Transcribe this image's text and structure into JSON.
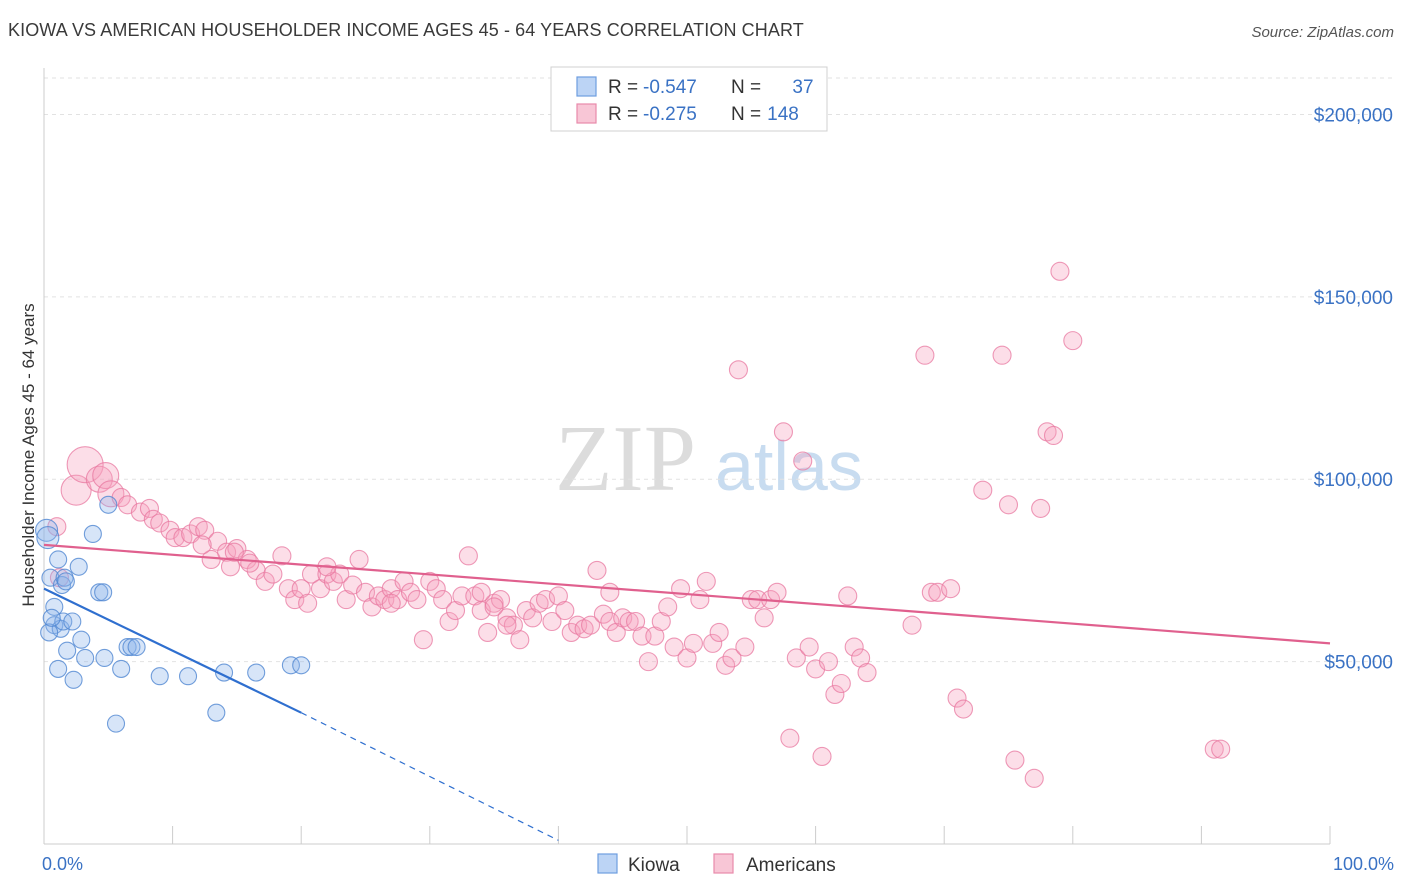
{
  "title": "KIOWA VS AMERICAN HOUSEHOLDER INCOME AGES 45 - 64 YEARS CORRELATION CHART",
  "source": "Source: ZipAtlas.com",
  "watermark": {
    "zip": "ZIP",
    "atlas": "atlas"
  },
  "legend_box": [
    {
      "r_label": "R =",
      "r_value": "-0.547",
      "n_label": "N =",
      "n_value": "37"
    },
    {
      "r_label": "R =",
      "r_value": "-0.275",
      "n_label": "N =",
      "n_value": "148"
    }
  ],
  "chart_data": {
    "type": "scatter",
    "title": "KIOWA VS AMERICAN HOUSEHOLDER INCOME AGES 45 - 64 YEARS CORRELATION CHART",
    "ylabel": "Householder Income Ages 45 - 64 years",
    "xlabel": "",
    "x_tick_labels": [
      "0.0%",
      "100.0%"
    ],
    "y_tick_labels": [
      "$50,000",
      "$100,000",
      "$150,000",
      "$200,000"
    ],
    "y_ticks": [
      50000,
      100000,
      150000,
      200000
    ],
    "xlim": [
      0,
      100
    ],
    "ylim": [
      0,
      210000
    ],
    "grid": true,
    "legend_position": "bottom-center",
    "colors": {
      "Kiowa": "#5b8fd6",
      "Americans": "#e8709a",
      "kiowa_line": "#2f6fcf",
      "americans_line": "#e0608e"
    },
    "series": [
      {
        "name": "Kiowa",
        "r": -0.547,
        "n": 37,
        "trend": {
          "x0": 0,
          "y0": 70000,
          "x1": 20,
          "y1": 36000,
          "dash_to_x": 40,
          "dash_to_y": 1000
        },
        "points": [
          [
            0.2,
            86000
          ],
          [
            0.3,
            84000
          ],
          [
            0.5,
            73000
          ],
          [
            0.8,
            65000
          ],
          [
            0.8,
            60000
          ],
          [
            1.1,
            78000
          ],
          [
            1.1,
            48000
          ],
          [
            1.3,
            59000
          ],
          [
            1.4,
            71000
          ],
          [
            1.5,
            61000
          ],
          [
            1.6,
            73000
          ],
          [
            1.7,
            72000
          ],
          [
            1.8,
            53000
          ],
          [
            2.2,
            61000
          ],
          [
            2.3,
            45000
          ],
          [
            2.7,
            76000
          ],
          [
            2.9,
            56000
          ],
          [
            3.2,
            51000
          ],
          [
            3.8,
            85000
          ],
          [
            4.3,
            69000
          ],
          [
            4.6,
            69000
          ],
          [
            4.7,
            51000
          ],
          [
            5.0,
            93000
          ],
          [
            5.6,
            33000
          ],
          [
            6.0,
            48000
          ],
          [
            6.5,
            54000
          ],
          [
            6.8,
            54000
          ],
          [
            7.2,
            54000
          ],
          [
            9.0,
            46000
          ],
          [
            11.2,
            46000
          ],
          [
            13.4,
            36000
          ],
          [
            14.0,
            47000
          ],
          [
            16.5,
            47000
          ],
          [
            19.2,
            49000
          ],
          [
            20.0,
            49000
          ],
          [
            0.4,
            58000
          ],
          [
            0.6,
            62000
          ]
        ]
      },
      {
        "name": "Americans",
        "r": -0.275,
        "n": 148,
        "trend": {
          "x0": 0,
          "y0": 82000,
          "x1": 100,
          "y1": 55000
        },
        "points": [
          [
            1.0,
            87000
          ],
          [
            1.2,
            73000
          ],
          [
            2.5,
            97000
          ],
          [
            3.2,
            104000
          ],
          [
            4.3,
            100000
          ],
          [
            4.8,
            101000
          ],
          [
            5.2,
            96000
          ],
          [
            6.0,
            95000
          ],
          [
            6.5,
            93000
          ],
          [
            7.5,
            91000
          ],
          [
            8.2,
            92000
          ],
          [
            8.5,
            89000
          ],
          [
            9.0,
            88000
          ],
          [
            9.8,
            86000
          ],
          [
            10.2,
            84000
          ],
          [
            10.8,
            84000
          ],
          [
            11.4,
            85000
          ],
          [
            12.0,
            87000
          ],
          [
            12.5,
            86000
          ],
          [
            13.0,
            78000
          ],
          [
            13.5,
            83000
          ],
          [
            14.2,
            80000
          ],
          [
            14.5,
            76000
          ],
          [
            15.0,
            81000
          ],
          [
            15.8,
            78000
          ],
          [
            16.5,
            75000
          ],
          [
            17.2,
            72000
          ],
          [
            17.8,
            74000
          ],
          [
            18.5,
            79000
          ],
          [
            19.0,
            70000
          ],
          [
            19.5,
            67000
          ],
          [
            20.0,
            70000
          ],
          [
            20.8,
            74000
          ],
          [
            21.5,
            70000
          ],
          [
            22.0,
            74000
          ],
          [
            22.5,
            72000
          ],
          [
            23.0,
            74000
          ],
          [
            23.5,
            67000
          ],
          [
            24.0,
            71000
          ],
          [
            24.5,
            78000
          ],
          [
            25.0,
            69000
          ],
          [
            25.5,
            65000
          ],
          [
            26.0,
            68000
          ],
          [
            26.5,
            67000
          ],
          [
            27.0,
            70000
          ],
          [
            27.5,
            67000
          ],
          [
            28.0,
            72000
          ],
          [
            28.5,
            69000
          ],
          [
            29.0,
            67000
          ],
          [
            29.5,
            56000
          ],
          [
            30.0,
            72000
          ],
          [
            30.5,
            70000
          ],
          [
            31.0,
            67000
          ],
          [
            31.5,
            61000
          ],
          [
            32.0,
            64000
          ],
          [
            32.5,
            68000
          ],
          [
            33.0,
            79000
          ],
          [
            33.5,
            68000
          ],
          [
            34.0,
            64000
          ],
          [
            34.5,
            58000
          ],
          [
            35.0,
            66000
          ],
          [
            35.5,
            67000
          ],
          [
            36.0,
            62000
          ],
          [
            36.5,
            60000
          ],
          [
            37.0,
            56000
          ],
          [
            37.5,
            64000
          ],
          [
            38.0,
            62000
          ],
          [
            38.5,
            66000
          ],
          [
            39.0,
            67000
          ],
          [
            39.5,
            61000
          ],
          [
            40.0,
            68000
          ],
          [
            40.5,
            64000
          ],
          [
            41.0,
            58000
          ],
          [
            41.5,
            60000
          ],
          [
            42.0,
            59000
          ],
          [
            42.5,
            60000
          ],
          [
            43.0,
            75000
          ],
          [
            43.5,
            63000
          ],
          [
            44.0,
            61000
          ],
          [
            44.5,
            58000
          ],
          [
            45.0,
            62000
          ],
          [
            45.5,
            61000
          ],
          [
            46.0,
            61000
          ],
          [
            46.5,
            57000
          ],
          [
            47.0,
            50000
          ],
          [
            47.5,
            57000
          ],
          [
            48.0,
            61000
          ],
          [
            48.5,
            65000
          ],
          [
            49.0,
            54000
          ],
          [
            49.5,
            70000
          ],
          [
            50.0,
            51000
          ],
          [
            50.5,
            55000
          ],
          [
            51.0,
            67000
          ],
          [
            51.5,
            72000
          ],
          [
            52.0,
            55000
          ],
          [
            52.5,
            58000
          ],
          [
            53.0,
            49000
          ],
          [
            53.5,
            51000
          ],
          [
            54.0,
            130000
          ],
          [
            54.5,
            54000
          ],
          [
            55.0,
            67000
          ],
          [
            55.5,
            67000
          ],
          [
            56.0,
            62000
          ],
          [
            56.5,
            67000
          ],
          [
            57.0,
            69000
          ],
          [
            57.5,
            113000
          ],
          [
            58.0,
            29000
          ],
          [
            58.5,
            51000
          ],
          [
            59.0,
            105000
          ],
          [
            59.5,
            54000
          ],
          [
            60.0,
            48000
          ],
          [
            60.5,
            24000
          ],
          [
            61.0,
            50000
          ],
          [
            61.5,
            41000
          ],
          [
            62.0,
            44000
          ],
          [
            62.5,
            68000
          ],
          [
            63.0,
            54000
          ],
          [
            63.5,
            51000
          ],
          [
            64.0,
            47000
          ],
          [
            67.5,
            60000
          ],
          [
            68.5,
            134000
          ],
          [
            69.0,
            69000
          ],
          [
            69.5,
            69000
          ],
          [
            70.5,
            70000
          ],
          [
            71.0,
            40000
          ],
          [
            71.5,
            37000
          ],
          [
            73.0,
            97000
          ],
          [
            74.5,
            134000
          ],
          [
            75.0,
            93000
          ],
          [
            75.5,
            23000
          ],
          [
            77.0,
            18000
          ],
          [
            77.5,
            92000
          ],
          [
            78.0,
            113000
          ],
          [
            78.5,
            112000
          ],
          [
            79.0,
            157000
          ],
          [
            80.0,
            138000
          ],
          [
            91.0,
            26000
          ],
          [
            91.5,
            26000
          ],
          [
            27.0,
            66000
          ],
          [
            34.0,
            69000
          ],
          [
            22.0,
            76000
          ],
          [
            20.5,
            66000
          ],
          [
            35.0,
            65000
          ],
          [
            36.0,
            60000
          ],
          [
            44.0,
            69000
          ],
          [
            12.3,
            82000
          ],
          [
            14.8,
            80000
          ],
          [
            16.0,
            77000
          ]
        ]
      }
    ]
  },
  "bottom_legend": [
    {
      "label": "Kiowa",
      "swatch_fill": "#bcd4f5",
      "swatch_stroke": "#6e9ee0"
    },
    {
      "label": "Americans",
      "swatch_fill": "#f8c6d6",
      "swatch_stroke": "#e88aab"
    }
  ]
}
